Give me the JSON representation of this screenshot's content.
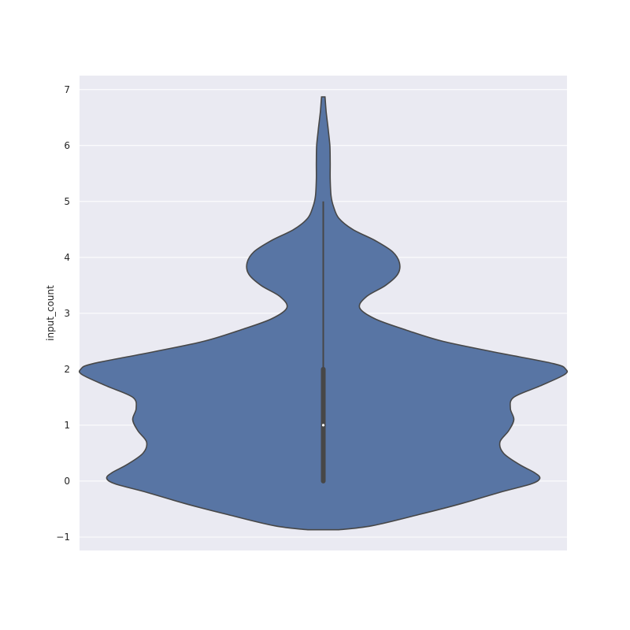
{
  "chart_data": {
    "type": "violin",
    "ylabel": "input_count",
    "xlabel": "",
    "ylim": [
      -1.24,
      7.25
    ],
    "yticks": [
      -1,
      0,
      1,
      2,
      3,
      4,
      5,
      6,
      7
    ],
    "grid": true,
    "background": "#eaeaf2",
    "fill_color": "#5875a4",
    "edge_color": "#474747",
    "density_profile": [
      {
        "y": -0.87,
        "half_width": 0.09
      },
      {
        "y": -0.8,
        "half_width": 0.28
      },
      {
        "y": -0.6,
        "half_width": 0.55
      },
      {
        "y": -0.4,
        "half_width": 0.8
      },
      {
        "y": -0.2,
        "half_width": 1.02
      },
      {
        "y": -0.05,
        "half_width": 1.2
      },
      {
        "y": 0.05,
        "half_width": 1.25
      },
      {
        "y": 0.15,
        "half_width": 1.22
      },
      {
        "y": 0.3,
        "half_width": 1.13
      },
      {
        "y": 0.5,
        "half_width": 1.04
      },
      {
        "y": 0.7,
        "half_width": 1.02
      },
      {
        "y": 0.9,
        "half_width": 1.07
      },
      {
        "y": 1.1,
        "half_width": 1.1
      },
      {
        "y": 1.3,
        "half_width": 1.08
      },
      {
        "y": 1.5,
        "half_width": 1.1
      },
      {
        "y": 1.7,
        "half_width": 1.25
      },
      {
        "y": 1.9,
        "half_width": 1.39
      },
      {
        "y": 2.0,
        "half_width": 1.4
      },
      {
        "y": 2.1,
        "half_width": 1.33
      },
      {
        "y": 2.3,
        "half_width": 1.0
      },
      {
        "y": 2.5,
        "half_width": 0.69
      },
      {
        "y": 2.7,
        "half_width": 0.48
      },
      {
        "y": 2.9,
        "half_width": 0.3
      },
      {
        "y": 3.1,
        "half_width": 0.21
      },
      {
        "y": 3.3,
        "half_width": 0.25
      },
      {
        "y": 3.5,
        "half_width": 0.36
      },
      {
        "y": 3.7,
        "half_width": 0.43
      },
      {
        "y": 3.9,
        "half_width": 0.44
      },
      {
        "y": 4.1,
        "half_width": 0.4
      },
      {
        "y": 4.3,
        "half_width": 0.3
      },
      {
        "y": 4.5,
        "half_width": 0.17
      },
      {
        "y": 4.7,
        "half_width": 0.09
      },
      {
        "y": 4.9,
        "half_width": 0.06
      },
      {
        "y": 5.1,
        "half_width": 0.045
      },
      {
        "y": 5.4,
        "half_width": 0.04
      },
      {
        "y": 5.7,
        "half_width": 0.04
      },
      {
        "y": 6.0,
        "half_width": 0.038
      },
      {
        "y": 6.3,
        "half_width": 0.028
      },
      {
        "y": 6.6,
        "half_width": 0.017
      },
      {
        "y": 6.87,
        "half_width": 0.01
      }
    ],
    "box": {
      "q1": 0,
      "median": 1,
      "q3": 2,
      "whisker_low": 0,
      "whisker_high": 5
    }
  }
}
